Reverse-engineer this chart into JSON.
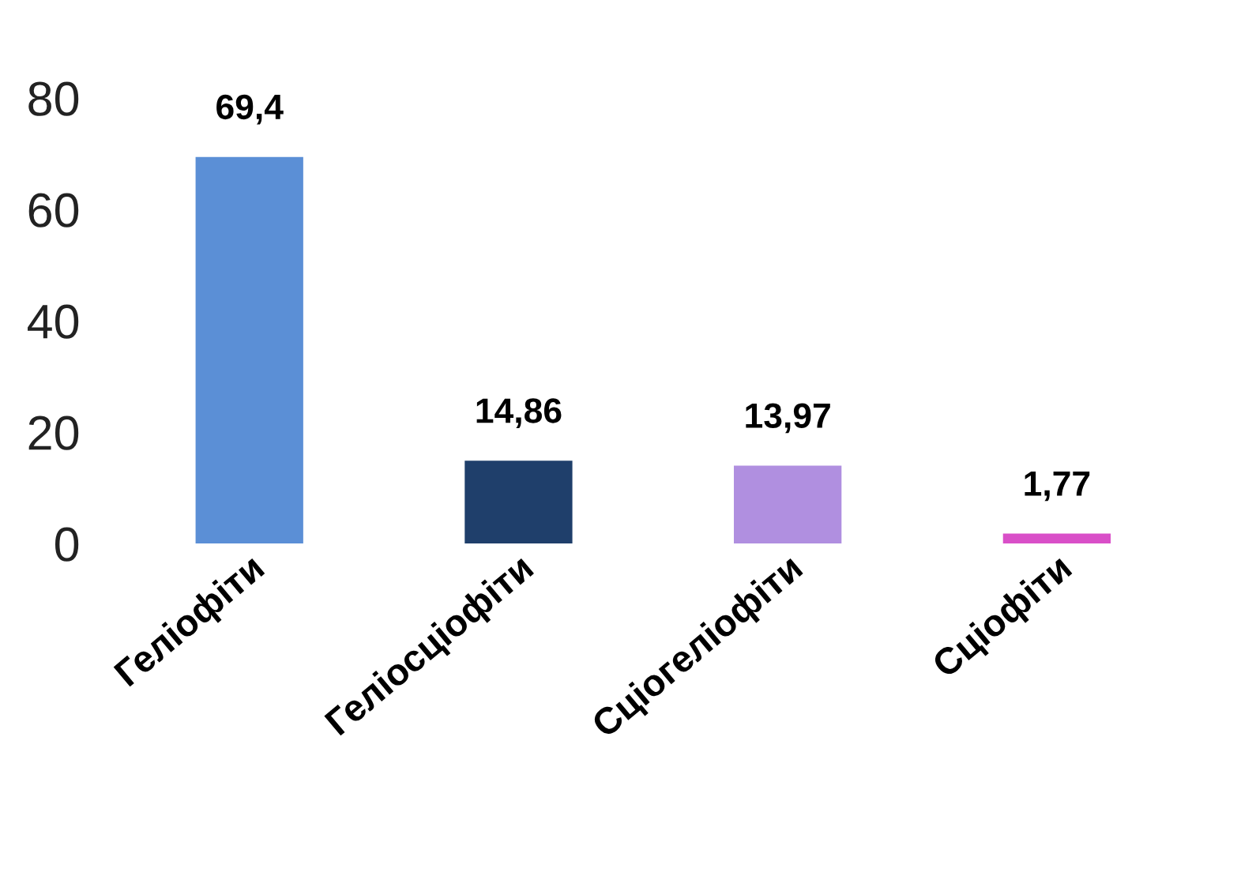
{
  "chart_data": {
    "type": "bar",
    "categories": [
      "Геліофіти",
      "Геліосціофіти",
      "Сціогеліофіти",
      "Сціофіти"
    ],
    "values": [
      69.4,
      14.86,
      13.97,
      1.77
    ],
    "colors": [
      "#5b8fd6",
      "#1f3f6b",
      "#b08fe0",
      "#d94fc8"
    ],
    "value_labels": [
      "69,4",
      "14,86",
      "13,97",
      "1,77"
    ],
    "ylim": [
      0,
      80
    ],
    "yticks": [
      0,
      20,
      40,
      60,
      80
    ],
    "grid": false,
    "legend": false
  }
}
